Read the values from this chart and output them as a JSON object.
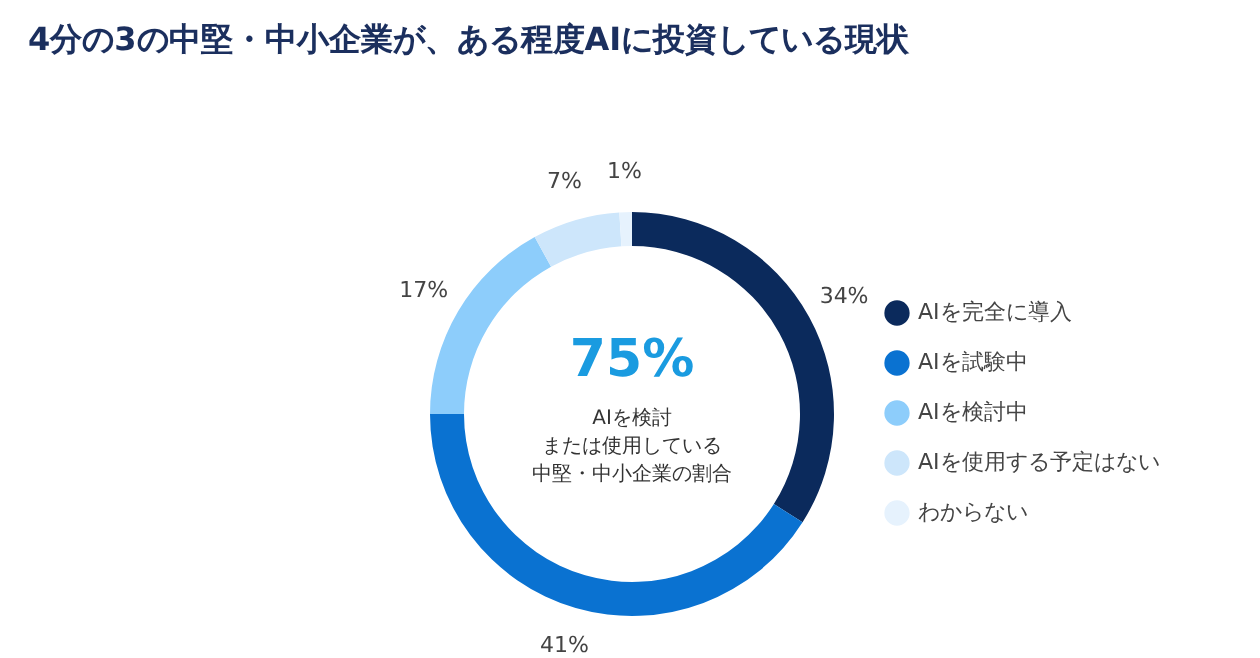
{
  "chart_data": {
    "type": "donut",
    "title": "4分の3の中堅・中小企業が、ある程度AIに投資している現状",
    "categories": [
      "AIを完全に導入",
      "AIを試験中",
      "AIを検討中",
      "AIを使用する予定はない",
      "わからない"
    ],
    "values": [
      34,
      41,
      17,
      7,
      1
    ],
    "colors": [
      "#0b2a5c",
      "#0a72d1",
      "#8dcdfb",
      "#cde6fb",
      "#e6f2fd"
    ],
    "value_labels": [
      "34%",
      "41%",
      "17%",
      "7%",
      "1%"
    ],
    "legend": "right",
    "annotations": [
      "75%",
      "AIを検討",
      "または使用している",
      "中堅・中小企業の割合"
    ]
  }
}
